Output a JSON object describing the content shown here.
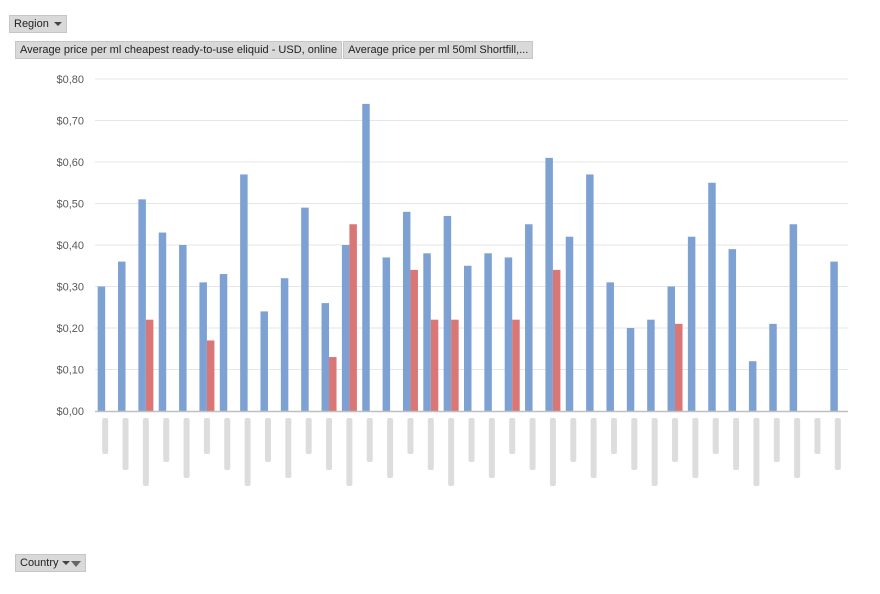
{
  "pivot": {
    "region_button": "Region",
    "country_button": "Country"
  },
  "colors": {
    "series1": "#7ea1d3",
    "series2": "#d97676",
    "grid": "#e6e6e6",
    "axis": "#bfbfbf"
  },
  "chart_data": {
    "type": "bar",
    "title": "",
    "xlabel": "",
    "ylabel": "",
    "ylim": [
      0,
      0.8
    ],
    "yticks": [
      "$0,00",
      "$0,10",
      "$0,20",
      "$0,30",
      "$0,40",
      "$0,50",
      "$0,60",
      "$0,70",
      "$0,80"
    ],
    "grid": true,
    "legend": "top-left",
    "series": [
      {
        "name": "Average price per ml  cheapest ready-to-use eliquid - USD, online",
        "values": [
          0.3,
          0.36,
          0.51,
          0.43,
          0.4,
          0.31,
          0.33,
          0.57,
          0.24,
          0.32,
          0.49,
          0.26,
          0.4,
          0.74,
          0.37,
          0.48,
          0.38,
          0.47,
          0.35,
          0.38,
          0.37,
          0.45,
          0.61,
          0.42,
          0.57,
          0.31,
          0.2,
          0.22,
          0.3,
          0.42,
          0.55,
          0.39,
          0.12,
          0.21,
          0.45,
          null,
          0.36
        ]
      },
      {
        "name": "Average price per ml  50ml Shortfill,...",
        "values": [
          null,
          null,
          0.22,
          null,
          null,
          0.17,
          null,
          null,
          null,
          null,
          null,
          0.13,
          0.45,
          null,
          null,
          0.34,
          0.22,
          0.22,
          null,
          null,
          0.22,
          null,
          0.34,
          null,
          null,
          null,
          null,
          null,
          0.21,
          null,
          null,
          null,
          null,
          null,
          null,
          null,
          null
        ]
      }
    ]
  }
}
